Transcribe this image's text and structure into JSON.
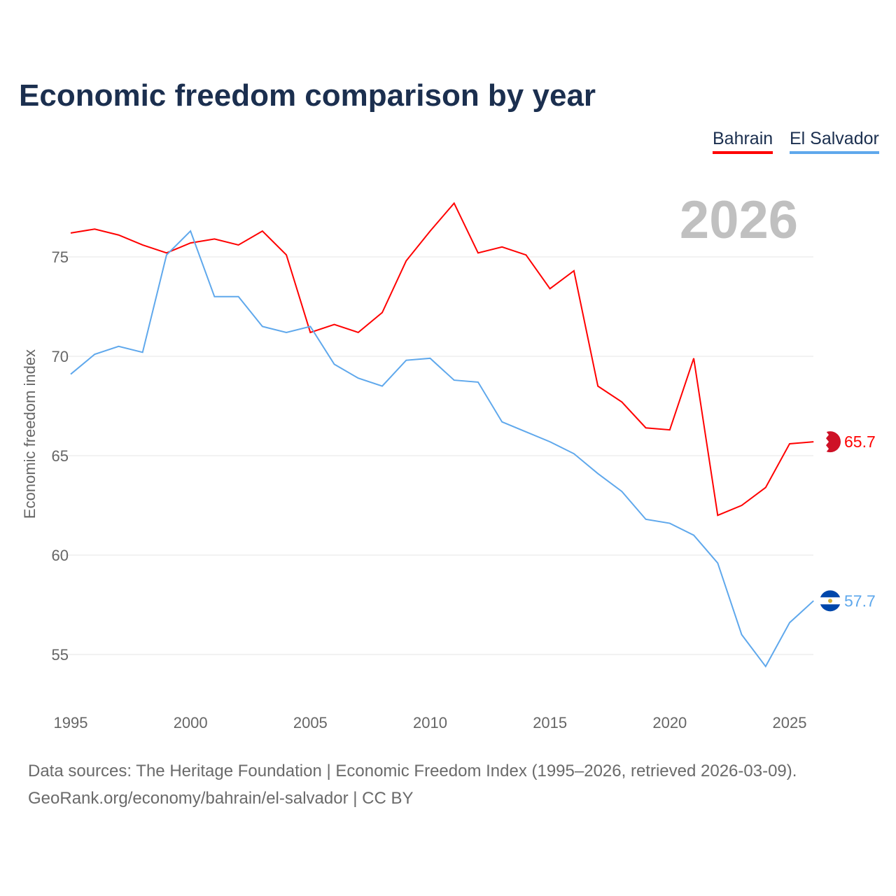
{
  "chart_data": {
    "type": "line",
    "title": "Economic freedom comparison by year",
    "ylabel": "Economic freedom index",
    "xlabel": "",
    "year_label": "2026",
    "x": [
      1995,
      1996,
      1997,
      1998,
      1999,
      2000,
      2001,
      2002,
      2003,
      2004,
      2005,
      2006,
      2007,
      2008,
      2009,
      2010,
      2011,
      2012,
      2013,
      2014,
      2015,
      2016,
      2017,
      2018,
      2019,
      2020,
      2021,
      2022,
      2023,
      2024,
      2025,
      2026
    ],
    "xticks": [
      "1995",
      "2000",
      "2005",
      "2010",
      "2015",
      "2020",
      "2025"
    ],
    "yticks": [
      "55",
      "60",
      "65",
      "70",
      "75"
    ],
    "xlim": [
      1995,
      2026
    ],
    "ylim": [
      52.5,
      78.5
    ],
    "grid": true,
    "legend": "top-right",
    "series": [
      {
        "name": "Bahrain",
        "color": "#ff0000",
        "end_label": "65.7",
        "values": [
          76.2,
          76.4,
          76.1,
          75.6,
          75.2,
          75.7,
          75.9,
          75.6,
          76.3,
          75.1,
          71.2,
          71.6,
          71.2,
          72.2,
          74.8,
          76.3,
          77.7,
          75.2,
          75.5,
          75.1,
          73.4,
          74.3,
          68.5,
          67.7,
          66.4,
          66.3,
          69.9,
          62.0,
          62.5,
          63.4,
          65.6,
          65.7
        ]
      },
      {
        "name": "El Salvador",
        "color": "#5fa8ec",
        "end_label": "57.7",
        "values": [
          69.1,
          70.1,
          70.5,
          70.2,
          75.1,
          76.3,
          73.0,
          73.0,
          71.5,
          71.2,
          71.5,
          69.6,
          68.9,
          68.5,
          69.8,
          69.9,
          68.8,
          68.7,
          66.7,
          66.2,
          65.7,
          65.1,
          64.1,
          63.2,
          61.8,
          61.6,
          61.0,
          59.6,
          56.0,
          54.4,
          56.6,
          57.7
        ]
      }
    ]
  },
  "footer": {
    "line1": "Data sources: The Heritage Foundation | Economic Freedom Index (1995–2026, retrieved 2026-03-09).",
    "line2": "GeoRank.org/economy/bahrain/el-salvador | CC BY"
  }
}
